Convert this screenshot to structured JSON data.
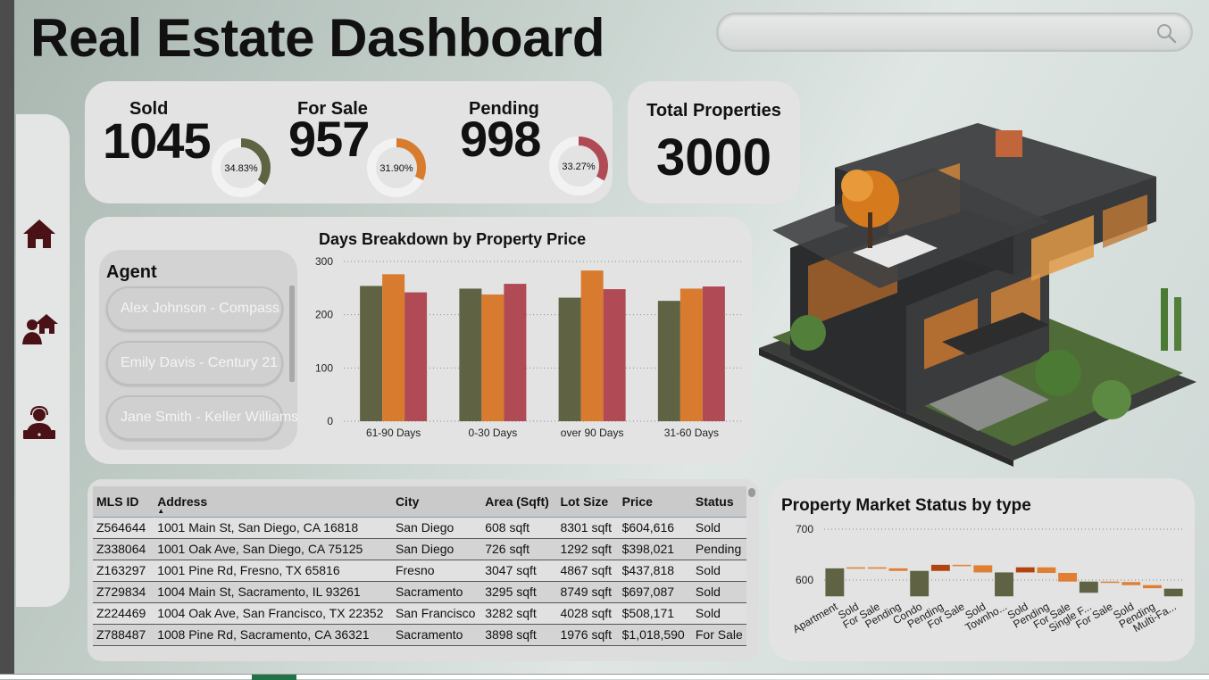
{
  "app": {
    "title": "Real Estate Dashboard"
  },
  "search": {
    "icon": "search-icon"
  },
  "nav": {
    "items": [
      {
        "icon": "home-icon"
      },
      {
        "icon": "agent-house-icon"
      },
      {
        "icon": "support-agent-icon"
      }
    ]
  },
  "kpis": {
    "sold": {
      "label": "Sold",
      "value": "1045",
      "pct_label": "34.83%",
      "pct": 34.83,
      "color": "#5f6344"
    },
    "for_sale": {
      "label": "For Sale",
      "value": "957",
      "pct_label": "31.90%",
      "pct": 31.9,
      "color": "#d87b2e"
    },
    "pending": {
      "label": "Pending",
      "value": "998",
      "pct_label": "33.27%",
      "pct": 33.27,
      "color": "#b04a55"
    }
  },
  "total": {
    "label": "Total Properties",
    "value": "3000"
  },
  "agents": {
    "title": "Agent",
    "items": [
      "Alex Johnson - Compass",
      "Emily Davis - Century 21",
      "Jane Smith - Keller Williams"
    ]
  },
  "chart_data": [
    {
      "type": "bar",
      "title": "Days Breakdown by Property Price",
      "categories": [
        "61-90 Days",
        "0-30 Days",
        "over 90 Days",
        "31-60 Days"
      ],
      "series": [
        {
          "values": [
            254,
            249,
            232,
            226
          ],
          "color": "#5f6344"
        },
        {
          "values": [
            276,
            238,
            283,
            249
          ],
          "color": "#d87b2e"
        },
        {
          "values": [
            242,
            258,
            248,
            253
          ],
          "color": "#b04a55"
        }
      ],
      "yticks": [
        0,
        100,
        200,
        300
      ],
      "ylim": [
        0,
        300
      ],
      "grid": true
    },
    {
      "type": "bar",
      "subtype": "waterfall",
      "title": "Property Market Status by type",
      "categories": [
        "Apartment",
        "Sold",
        "For Sale",
        "Pending",
        "Condo",
        "Pending",
        "For Sale",
        "Sold",
        "Townho...",
        "Sold",
        "Pending",
        "For Sale",
        "Single F...",
        "For Sale",
        "Sold",
        "Pending",
        "Multi-Fa..."
      ],
      "bars": [
        {
          "start": 568,
          "end": 623,
          "kind": "total"
        },
        {
          "start": 623,
          "end": 625,
          "kind": "step"
        },
        {
          "start": 625,
          "end": 623,
          "kind": "step"
        },
        {
          "start": 623,
          "end": 618,
          "kind": "step"
        },
        {
          "start": 568,
          "end": 618,
          "kind": "total"
        },
        {
          "start": 618,
          "end": 630,
          "kind": "dark"
        },
        {
          "start": 630,
          "end": 629,
          "kind": "step"
        },
        {
          "start": 629,
          "end": 615,
          "kind": "step"
        },
        {
          "start": 568,
          "end": 615,
          "kind": "total"
        },
        {
          "start": 615,
          "end": 625,
          "kind": "dark"
        },
        {
          "start": 625,
          "end": 614,
          "kind": "step"
        },
        {
          "start": 614,
          "end": 597,
          "kind": "step"
        },
        {
          "start": 575,
          "end": 597,
          "kind": "total"
        },
        {
          "start": 597,
          "end": 596,
          "kind": "step"
        },
        {
          "start": 596,
          "end": 590,
          "kind": "step"
        },
        {
          "start": 590,
          "end": 584,
          "kind": "step"
        },
        {
          "start": 568,
          "end": 583,
          "kind": "total"
        }
      ],
      "yticks": [
        600,
        700
      ],
      "ylim": [
        550,
        700
      ],
      "colors": {
        "total": "#5f6344",
        "step": "#e07f34",
        "dark": "#b24410"
      }
    }
  ],
  "table": {
    "columns": [
      "MLS ID",
      "Address",
      "City",
      "Area (Sqft)",
      "Lot Size",
      "Price",
      "Status"
    ],
    "rows": [
      [
        "Z564644",
        "1001 Main St, San Diego, CA 16818",
        "San Diego",
        "608 sqft",
        "8301 sqft",
        "$604,616",
        "Sold"
      ],
      [
        "Z338064",
        "1001 Oak Ave, San Diego, CA 75125",
        "San Diego",
        "726 sqft",
        "1292 sqft",
        "$398,021",
        "Pending"
      ],
      [
        "Z163297",
        "1001 Pine Rd, Fresno, TX 65816",
        "Fresno",
        "3047 sqft",
        "4867 sqft",
        "$437,818",
        "Sold"
      ],
      [
        "Z729834",
        "1004 Main St, Sacramento, IL 93261",
        "Sacramento",
        "3295 sqft",
        "8749 sqft",
        "$697,087",
        "Sold"
      ],
      [
        "Z224469",
        "1004 Oak Ave, San Francisco, TX 22352",
        "San Francisco",
        "3282 sqft",
        "4028 sqft",
        "$508,171",
        "Sold"
      ],
      [
        "Z788487",
        "1008 Pine Rd, Sacramento, CA 36321",
        "Sacramento",
        "3898 sqft",
        "1976 sqft",
        "$1,018,590",
        "For Sale"
      ]
    ]
  }
}
